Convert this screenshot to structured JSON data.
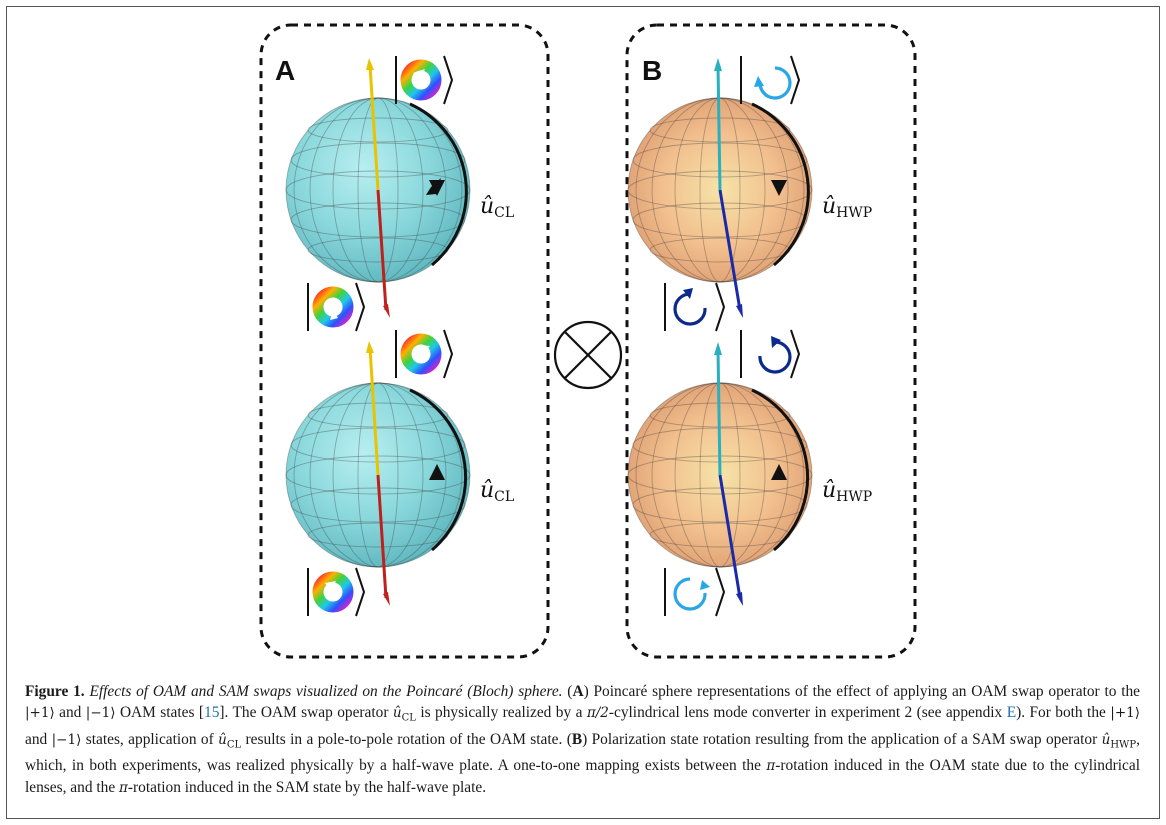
{
  "panels": {
    "a": {
      "label": "A",
      "axis_label_top": "û",
      "axis_label_top_sub": "CL",
      "axis_label_bottom": "û",
      "axis_label_bottom_sub": "CL"
    },
    "b": {
      "label": "B",
      "axis_label_top": "û",
      "axis_label_top_sub": "HWP",
      "axis_label_bottom": "û",
      "axis_label_bottom_sub": "HWP"
    }
  },
  "tensor_symbol": "⊗",
  "colors": {
    "sphere_a": "#8fdce0",
    "sphere_b": "#eeb58a",
    "axis_yellow": "#e8c400",
    "axis_red": "#c0201c",
    "axis_cyan": "#28b0c0",
    "axis_blue": "#1a2aa8",
    "circ_light": "#2aa6e6",
    "circ_dark": "#0b2a8c",
    "link": "#1d6fb8"
  },
  "caption": {
    "fig_label": "Figure 1.",
    "title": "Effects of OAM and SAM swaps visualized on the Poincaré (Bloch) sphere.",
    "a_label": "A",
    "s1": "Poincaré sphere representations of the effect of applying an OAM swap operator to the",
    "ket_p1": "|+1⟩",
    "and1": "and",
    "ket_m1": "|−1⟩",
    "s2": "OAM states [",
    "ref1": "15",
    "s3": "]. The OAM swap operator",
    "op_cl": "û",
    "op_cl_sub": "CL",
    "s4": "is physically realized by a",
    "pi2": "π/2",
    "s5": "-cylindrical lens mode converter in experiment 2 (see appendix",
    "ref2": "E",
    "s6": "). For both the",
    "ket_p1b": "|+1⟩",
    "and2": "and",
    "ket_m1b": "|−1⟩",
    "s7": "states, application of",
    "op_cl2": "û",
    "op_cl2_sub": "CL",
    "s8": "results in a pole-to-pole rotation of the OAM state.",
    "b_label": "B",
    "s9": "Polarization state rotation resulting from the application of a SAM swap operator",
    "op_hwp": "û",
    "op_hwp_sub": "HWP",
    "s10": ", which, in both experiments, was realized physically by a half-wave plate. A one-to-one mapping exists between the",
    "pi_a": "π",
    "s11": "-rotation induced in the OAM state due to the cylindrical lenses, and the",
    "pi_b": "π",
    "s12": "-rotation induced in the SAM state by the half-wave plate."
  }
}
